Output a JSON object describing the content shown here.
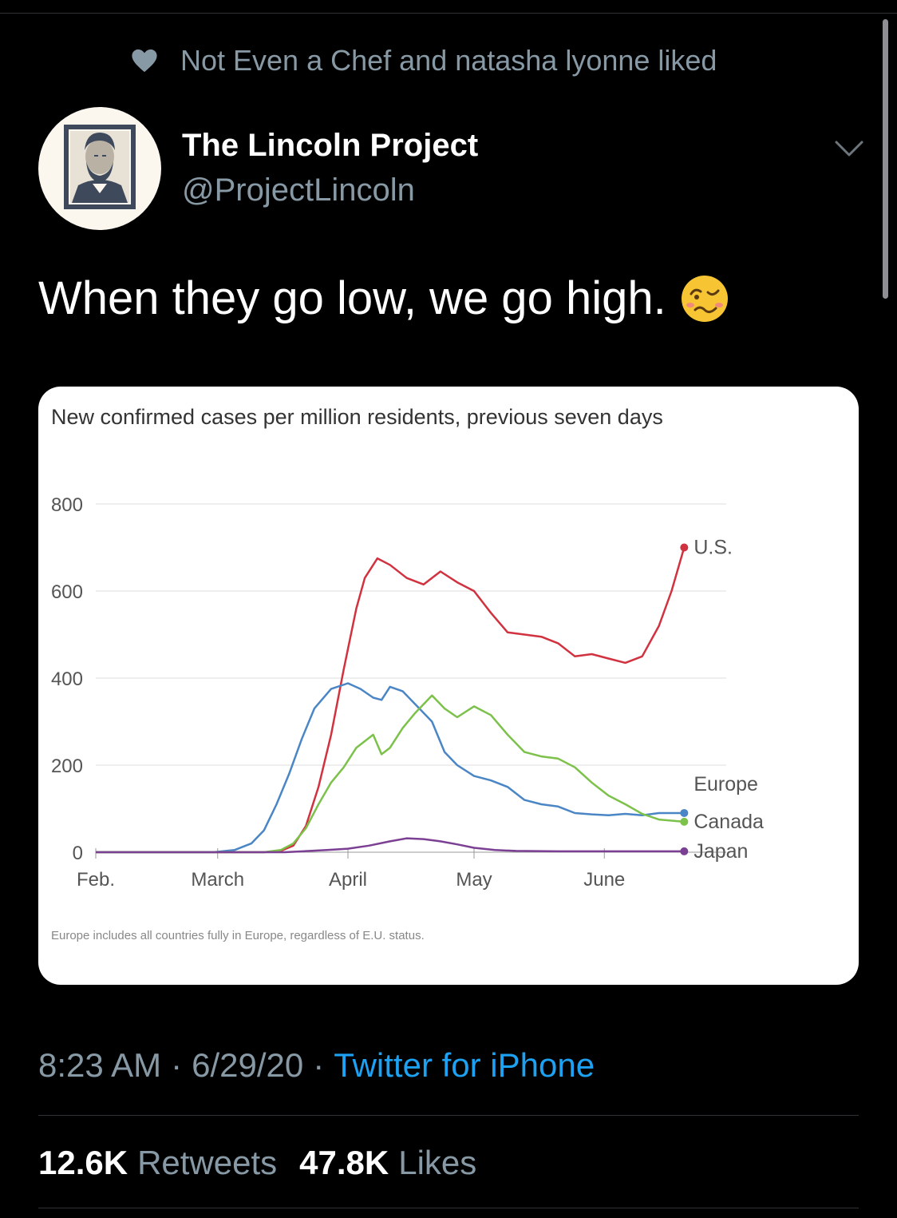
{
  "social_context": {
    "icon": "heart-icon",
    "text": "Not Even a Chef and natasha lyonne liked"
  },
  "author": {
    "name": "The Lincoln Project",
    "handle": "@ProjectLincoln",
    "avatar": "lincoln-portrait-avatar"
  },
  "tweet": {
    "text": "When they go low, we go high.",
    "emoji": "woozy-face-emoji"
  },
  "meta": {
    "time": "8:23 AM",
    "date": "6/29/20",
    "separator": "·",
    "source": "Twitter for iPhone"
  },
  "stats": {
    "retweets_count": "12.6K",
    "retweets_label": "Retweets",
    "likes_count": "47.8K",
    "likes_label": "Likes"
  },
  "colors": {
    "us": "#d1323f",
    "europe": "#4a86c5",
    "canada": "#7cc14a",
    "japan": "#7b3f93",
    "link": "#1da1f2",
    "muted": "#8899a6"
  },
  "chart_data": {
    "type": "line",
    "title": "New confirmed cases per million residents, previous seven days",
    "footnote": "Europe includes all countries fully in Europe, regardless of E.U. status.",
    "ylim": [
      0,
      800
    ],
    "yticks": [
      "0",
      "200",
      "400",
      "600",
      "800"
    ],
    "xlim": [
      0,
      150
    ],
    "xticks": [
      {
        "label": "Feb.",
        "x": 0
      },
      {
        "label": "March",
        "x": 29
      },
      {
        "label": "April",
        "x": 60
      },
      {
        "label": "May",
        "x": 90
      },
      {
        "label": "June",
        "x": 121
      }
    ],
    "series": [
      {
        "name": "U.S.",
        "color": "#d1323f",
        "points": [
          [
            0,
            0
          ],
          [
            40,
            0
          ],
          [
            44,
            3
          ],
          [
            47,
            15
          ],
          [
            50,
            60
          ],
          [
            53,
            150
          ],
          [
            56,
            270
          ],
          [
            59,
            420
          ],
          [
            62,
            560
          ],
          [
            64,
            630
          ],
          [
            67,
            675
          ],
          [
            70,
            660
          ],
          [
            74,
            630
          ],
          [
            78,
            615
          ],
          [
            82,
            645
          ],
          [
            86,
            620
          ],
          [
            90,
            600
          ],
          [
            94,
            550
          ],
          [
            98,
            505
          ],
          [
            102,
            500
          ],
          [
            106,
            495
          ],
          [
            110,
            480
          ],
          [
            114,
            450
          ],
          [
            118,
            455
          ],
          [
            122,
            445
          ],
          [
            126,
            435
          ],
          [
            130,
            450
          ],
          [
            134,
            520
          ],
          [
            137,
            600
          ],
          [
            140,
            700
          ]
        ]
      },
      {
        "name": "Europe",
        "color": "#4a86c5",
        "points": [
          [
            0,
            0
          ],
          [
            28,
            0
          ],
          [
            33,
            5
          ],
          [
            37,
            20
          ],
          [
            40,
            50
          ],
          [
            43,
            110
          ],
          [
            46,
            180
          ],
          [
            49,
            260
          ],
          [
            52,
            330
          ],
          [
            56,
            375
          ],
          [
            60,
            388
          ],
          [
            63,
            375
          ],
          [
            66,
            355
          ],
          [
            68,
            350
          ],
          [
            70,
            380
          ],
          [
            73,
            370
          ],
          [
            76,
            340
          ],
          [
            80,
            300
          ],
          [
            83,
            230
          ],
          [
            86,
            200
          ],
          [
            90,
            175
          ],
          [
            94,
            165
          ],
          [
            98,
            150
          ],
          [
            102,
            120
          ],
          [
            106,
            110
          ],
          [
            110,
            105
          ],
          [
            114,
            90
          ],
          [
            118,
            87
          ],
          [
            122,
            85
          ],
          [
            126,
            88
          ],
          [
            130,
            85
          ],
          [
            134,
            90
          ],
          [
            140,
            90
          ]
        ]
      },
      {
        "name": "Canada",
        "color": "#7cc14a",
        "points": [
          [
            0,
            0
          ],
          [
            40,
            0
          ],
          [
            44,
            5
          ],
          [
            47,
            20
          ],
          [
            50,
            55
          ],
          [
            53,
            110
          ],
          [
            56,
            160
          ],
          [
            59,
            195
          ],
          [
            62,
            240
          ],
          [
            64,
            255
          ],
          [
            66,
            270
          ],
          [
            68,
            225
          ],
          [
            70,
            240
          ],
          [
            73,
            285
          ],
          [
            76,
            320
          ],
          [
            80,
            360
          ],
          [
            83,
            330
          ],
          [
            86,
            310
          ],
          [
            90,
            335
          ],
          [
            94,
            315
          ],
          [
            98,
            270
          ],
          [
            102,
            230
          ],
          [
            106,
            220
          ],
          [
            110,
            215
          ],
          [
            114,
            195
          ],
          [
            118,
            160
          ],
          [
            122,
            130
          ],
          [
            126,
            110
          ],
          [
            130,
            88
          ],
          [
            134,
            75
          ],
          [
            140,
            70
          ]
        ]
      },
      {
        "name": "Japan",
        "color": "#7b3f93",
        "points": [
          [
            0,
            0
          ],
          [
            45,
            0
          ],
          [
            55,
            5
          ],
          [
            60,
            8
          ],
          [
            65,
            15
          ],
          [
            70,
            25
          ],
          [
            74,
            32
          ],
          [
            78,
            30
          ],
          [
            82,
            25
          ],
          [
            86,
            18
          ],
          [
            90,
            10
          ],
          [
            95,
            5
          ],
          [
            100,
            3
          ],
          [
            110,
            2
          ],
          [
            120,
            2
          ],
          [
            140,
            2
          ]
        ]
      }
    ],
    "end_labels": [
      {
        "text": "U.S.",
        "series": "U.S."
      },
      {
        "text": "Europe",
        "series": "Europe"
      },
      {
        "text": "Canada",
        "series": "Canada"
      },
      {
        "text": "Japan",
        "series": "Japan"
      }
    ]
  }
}
